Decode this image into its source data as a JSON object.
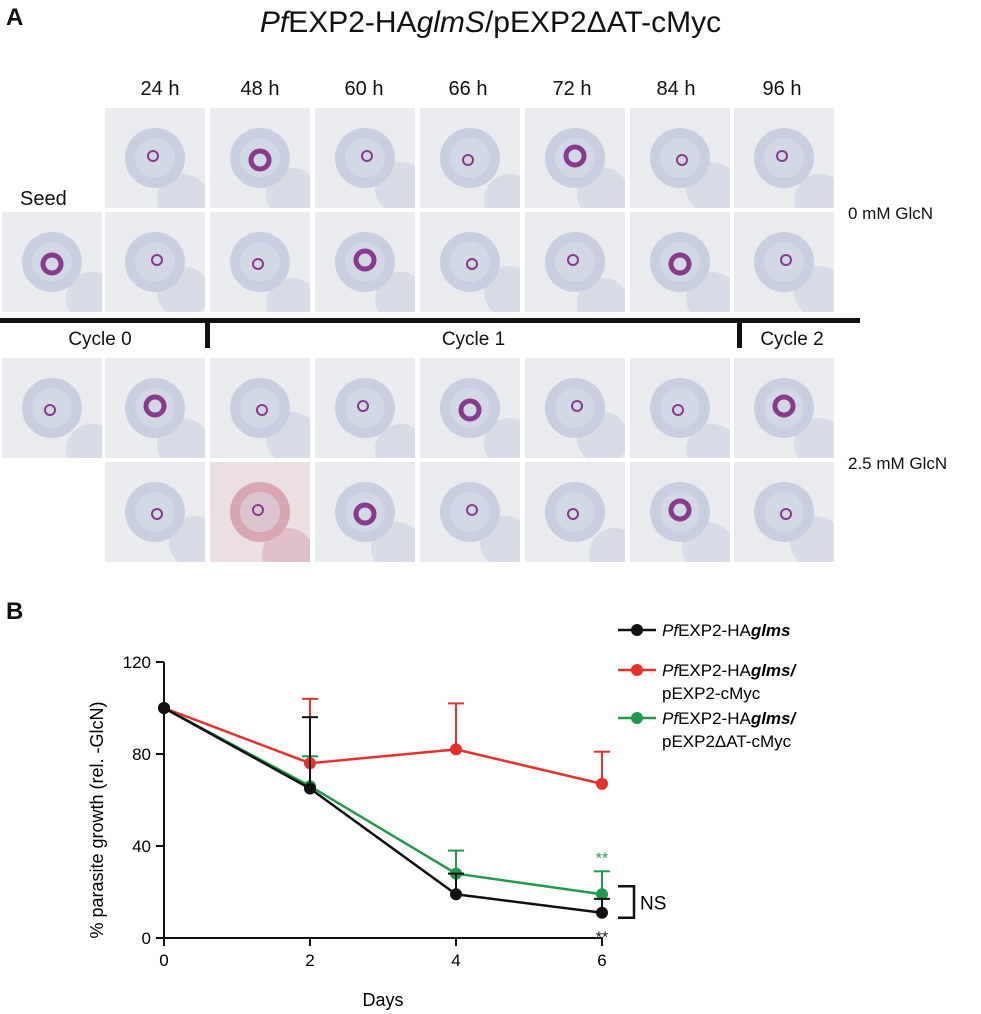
{
  "panel_a": {
    "letter": "A",
    "title_italic": "Pf",
    "title_mid": "EXP2-HA",
    "title_italic2": "glmS",
    "title_rest": "/pEXP2ΔAT-cMyc",
    "seed_label": "Seed",
    "time_points": [
      "24 h",
      "48 h",
      "60 h",
      "66 h",
      "72 h",
      "84 h",
      "96 h"
    ],
    "conditions": [
      "0 mM GlcN",
      "2.5 mM GlcN"
    ],
    "cycles": [
      "Cycle 0",
      "Cycle 1",
      "Cycle 2"
    ]
  },
  "panel_b": {
    "letter": "B",
    "ns_label": "NS",
    "sig_marker": "**"
  },
  "colors": {
    "black": "#111111",
    "red": "#e8302a",
    "green": "#1e9a4a",
    "cell": "#c9cfe0",
    "parasite": "#8a3a8c"
  },
  "chart_data": {
    "type": "line",
    "xlabel": "Days",
    "ylabel": "% parasite growth (rel. -GlcN)",
    "x": [
      0,
      2,
      4,
      6
    ],
    "xlim": [
      0,
      6
    ],
    "ylim": [
      0,
      120
    ],
    "xticks": [
      "0",
      "2",
      "4",
      "6"
    ],
    "yticks": [
      "0",
      "40",
      "80",
      "120"
    ],
    "legend_position": "top-right",
    "series": [
      {
        "name_italic": "Pf",
        "name_mid": "EXP2-HA",
        "name_italic2": "glms",
        "name_line2": "",
        "color": "#111111",
        "values": [
          100,
          65,
          19,
          11
        ],
        "err_upper": [
          0,
          31,
          9,
          6
        ]
      },
      {
        "name_italic": "Pf",
        "name_mid": "EXP2-HA",
        "name_italic2": "glms/",
        "name_line2": "pEXP2-cMyc",
        "color": "#e8302a",
        "values": [
          100,
          76,
          82,
          67
        ],
        "err_upper": [
          0,
          28,
          20,
          14
        ]
      },
      {
        "name_italic": "Pf",
        "name_mid": "EXP2-HA",
        "name_italic2": "glms/",
        "name_line2": "pEXP2ΔAT-cMyc",
        "color": "#1e9a4a",
        "values": [
          100,
          66,
          28,
          19
        ],
        "err_upper": [
          0,
          13,
          10,
          10
        ]
      }
    ]
  }
}
